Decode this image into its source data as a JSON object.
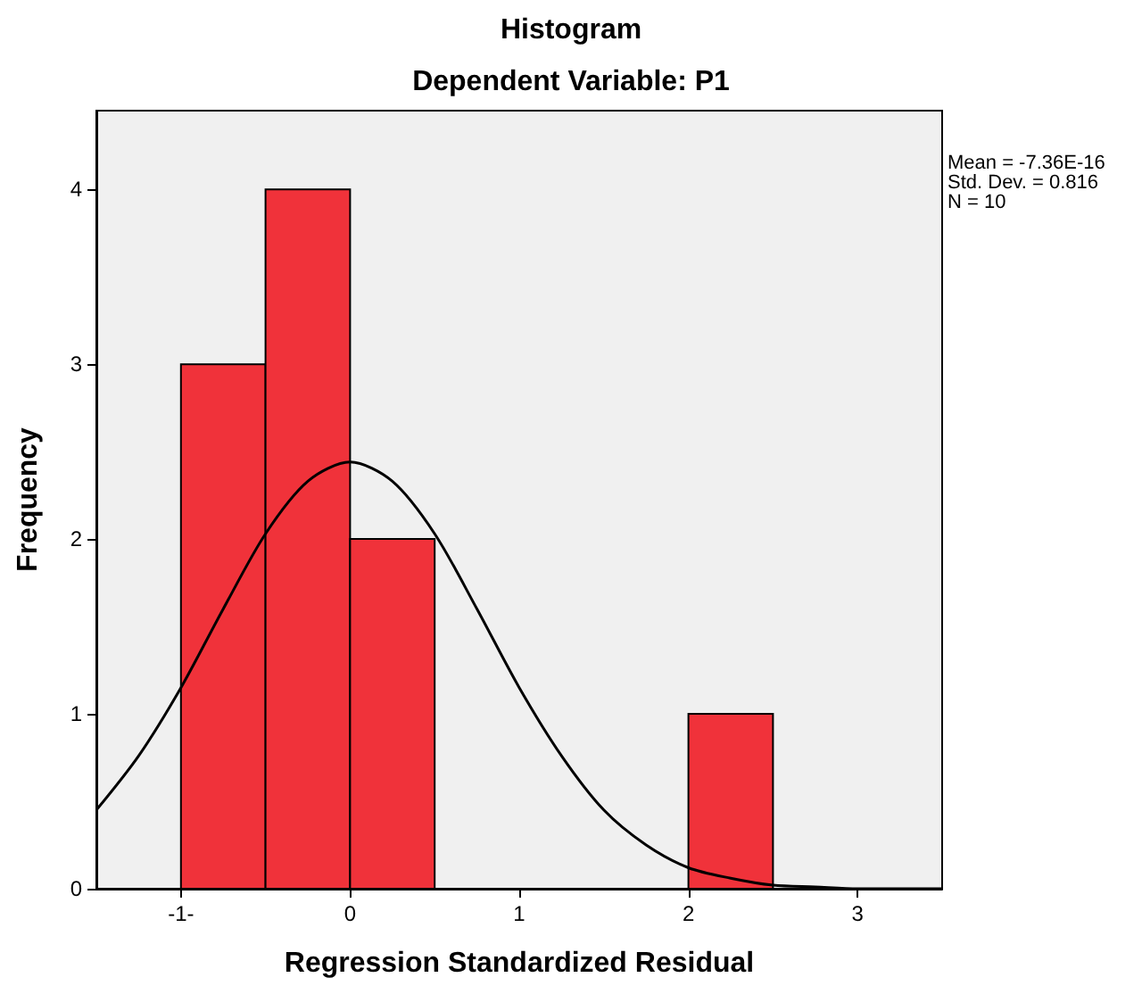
{
  "chart_data": {
    "type": "histogram",
    "title": "Histogram",
    "subtitle": "Dependent Variable: P1",
    "xlabel": "Regression Standardized Residual",
    "ylabel": "Frequency",
    "bins": [
      -1,
      -0.5,
      0,
      0.5,
      1,
      1.5,
      2,
      2.5
    ],
    "values": [
      3,
      4,
      2,
      0,
      0,
      0,
      1
    ],
    "color": "#f0323a",
    "series": [
      {
        "type": "line",
        "color": "#000000",
        "x": [
          -1.5,
          -1.25,
          -1,
          -0.75,
          -0.5,
          -0.25,
          0,
          0.25,
          0.5,
          0.75,
          1,
          1.25,
          1.5,
          1.75,
          2,
          2.25,
          2.5,
          2.75,
          3,
          3.25,
          3.5
        ],
        "values": [
          0.45,
          0.76,
          1.15,
          1.6,
          2.03,
          2.33,
          2.44,
          2.33,
          2.03,
          1.6,
          1.15,
          0.76,
          0.45,
          0.25,
          0.12,
          0.06,
          0.02,
          0.01,
          0,
          0,
          0
        ]
      }
    ],
    "xlim": [
      -1.5,
      3.5
    ],
    "xticks": [
      {
        "value": -1,
        "label": "-1-"
      },
      0,
      1,
      2,
      3
    ],
    "ylim": [
      0,
      4.45
    ],
    "yticks": [
      0,
      1,
      2,
      3,
      4
    ],
    "annotations": [
      "Mean = -7.36E-16",
      "Std. Dev. = 0.816",
      "N = 10"
    ],
    "grid": false,
    "marker": "none",
    "line_style": "solid"
  }
}
